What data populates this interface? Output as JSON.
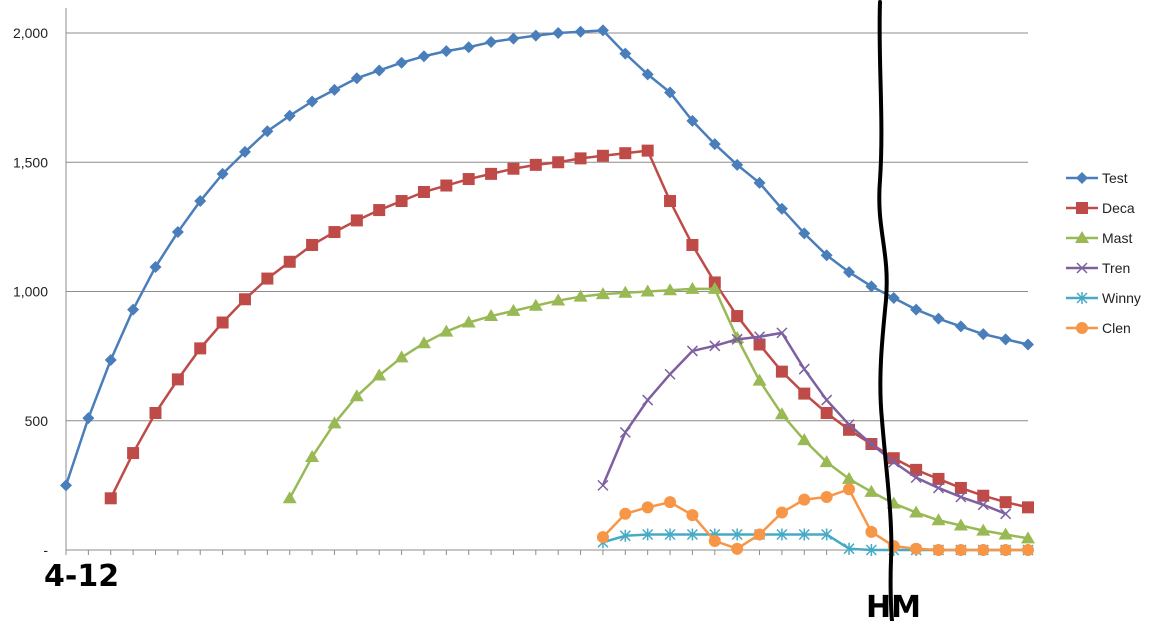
{
  "chart_data": {
    "type": "line",
    "title": "",
    "xlabel": "",
    "ylabel": "",
    "ylim": [
      0,
      2100
    ],
    "x_count": 44,
    "y_ticks": [
      {
        "value": 2000,
        "label": "2,000"
      },
      {
        "value": 1500,
        "label": "1,500"
      },
      {
        "value": 1000,
        "label": "1,000"
      },
      {
        "value": 500,
        "label": "500"
      },
      {
        "value": 0,
        "label": "-"
      }
    ],
    "grid": true,
    "legend_position": "right",
    "annotations": {
      "start_label": "4-12",
      "marker_label": "HM"
    },
    "series": [
      {
        "name": "Test",
        "color": "#4a7ebb",
        "marker": "diamond",
        "start": 0,
        "values": [
          250,
          510,
          735,
          930,
          1095,
          1230,
          1350,
          1455,
          1540,
          1620,
          1680,
          1735,
          1780,
          1825,
          1855,
          1885,
          1910,
          1930,
          1945,
          1965,
          1978,
          1990,
          2000,
          2005,
          2010,
          1920,
          1840,
          1770,
          1660,
          1570,
          1490,
          1420,
          1320,
          1225,
          1140,
          1075,
          1020,
          975,
          930,
          895,
          865,
          835,
          815,
          795
        ]
      },
      {
        "name": "Deca",
        "color": "#be4b48",
        "marker": "square",
        "start": 2,
        "values": [
          200,
          375,
          530,
          660,
          780,
          880,
          970,
          1050,
          1115,
          1180,
          1230,
          1275,
          1315,
          1350,
          1385,
          1410,
          1435,
          1455,
          1475,
          1490,
          1500,
          1515,
          1525,
          1535,
          1545,
          1350,
          1180,
          1035,
          905,
          795,
          690,
          605,
          530,
          465,
          410,
          355,
          310,
          275,
          240,
          210,
          185,
          165
        ]
      },
      {
        "name": "Mast",
        "color": "#98b954",
        "marker": "triangle",
        "start": 10,
        "values": [
          200,
          360,
          490,
          595,
          675,
          745,
          800,
          845,
          880,
          905,
          925,
          945,
          965,
          980,
          990,
          995,
          1000,
          1005,
          1010,
          1010,
          820,
          655,
          525,
          425,
          340,
          275,
          225,
          180,
          145,
          115,
          95,
          75,
          60,
          45
        ]
      },
      {
        "name": "Tren",
        "color": "#7d60a0",
        "marker": "x",
        "start": 24,
        "values": [
          250,
          455,
          580,
          680,
          770,
          790,
          815,
          825,
          840,
          700,
          580,
          485,
          410,
          340,
          280,
          240,
          205,
          175,
          140
        ]
      },
      {
        "name": "Winny",
        "color": "#46aac5",
        "marker": "star",
        "start": 24,
        "values": [
          30,
          55,
          60,
          60,
          60,
          60,
          60,
          60,
          60,
          60,
          60,
          5,
          0,
          0,
          0,
          0,
          0,
          0,
          0,
          0
        ]
      },
      {
        "name": "Clen",
        "color": "#f79646",
        "marker": "circle",
        "start": 24,
        "values": [
          50,
          140,
          165,
          185,
          135,
          35,
          5,
          60,
          145,
          195,
          205,
          235,
          70,
          15,
          5,
          0,
          0,
          0,
          0,
          0
        ]
      }
    ]
  }
}
